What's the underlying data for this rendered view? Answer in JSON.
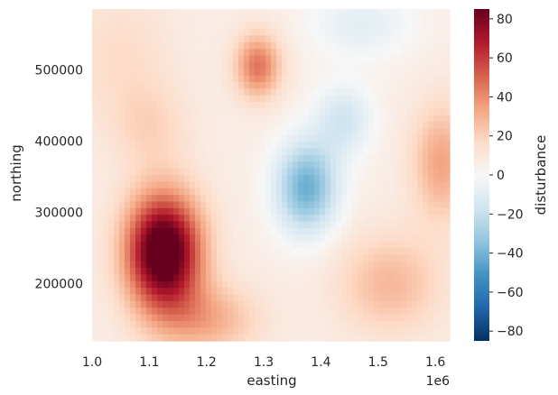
{
  "chart_data": {
    "type": "heatmap",
    "title": "",
    "xlabel": "easting",
    "ylabel": "northing",
    "x_offset_label": "1e6",
    "xlim": [
      1000000,
      1625000
    ],
    "ylim": [
      120000,
      585000
    ],
    "x_ticks": [
      1000000,
      1100000,
      1200000,
      1300000,
      1400000,
      1500000,
      1600000
    ],
    "x_tick_labels": [
      "1.0",
      "1.1",
      "1.2",
      "1.3",
      "1.4",
      "1.5",
      "1.6"
    ],
    "y_ticks": [
      200000,
      300000,
      400000,
      500000
    ],
    "y_tick_labels": [
      "200000",
      "300000",
      "400000",
      "500000"
    ],
    "colorbar": {
      "label": "disturbance",
      "colormap": "RdBu_r",
      "range": [
        -85,
        85
      ],
      "ticks": [
        -80,
        -60,
        -40,
        -20,
        0,
        20,
        40,
        60,
        80
      ],
      "tick_labels": [
        "−80",
        "−60",
        "−40",
        "−20",
        "0",
        "20",
        "40",
        "60",
        "80"
      ]
    },
    "field_features": [
      {
        "kind": "anomaly",
        "x": 1125000,
        "y": 245000,
        "value": 85
      },
      {
        "kind": "anomaly",
        "x": 1290000,
        "y": 505000,
        "value": 45
      },
      {
        "kind": "anomaly",
        "x": 1370000,
        "y": 330000,
        "value": -45
      },
      {
        "kind": "anomaly",
        "x": 1520000,
        "y": 210000,
        "value": 25
      },
      {
        "kind": "anomaly",
        "x": 1600000,
        "y": 370000,
        "value": 30
      }
    ]
  }
}
